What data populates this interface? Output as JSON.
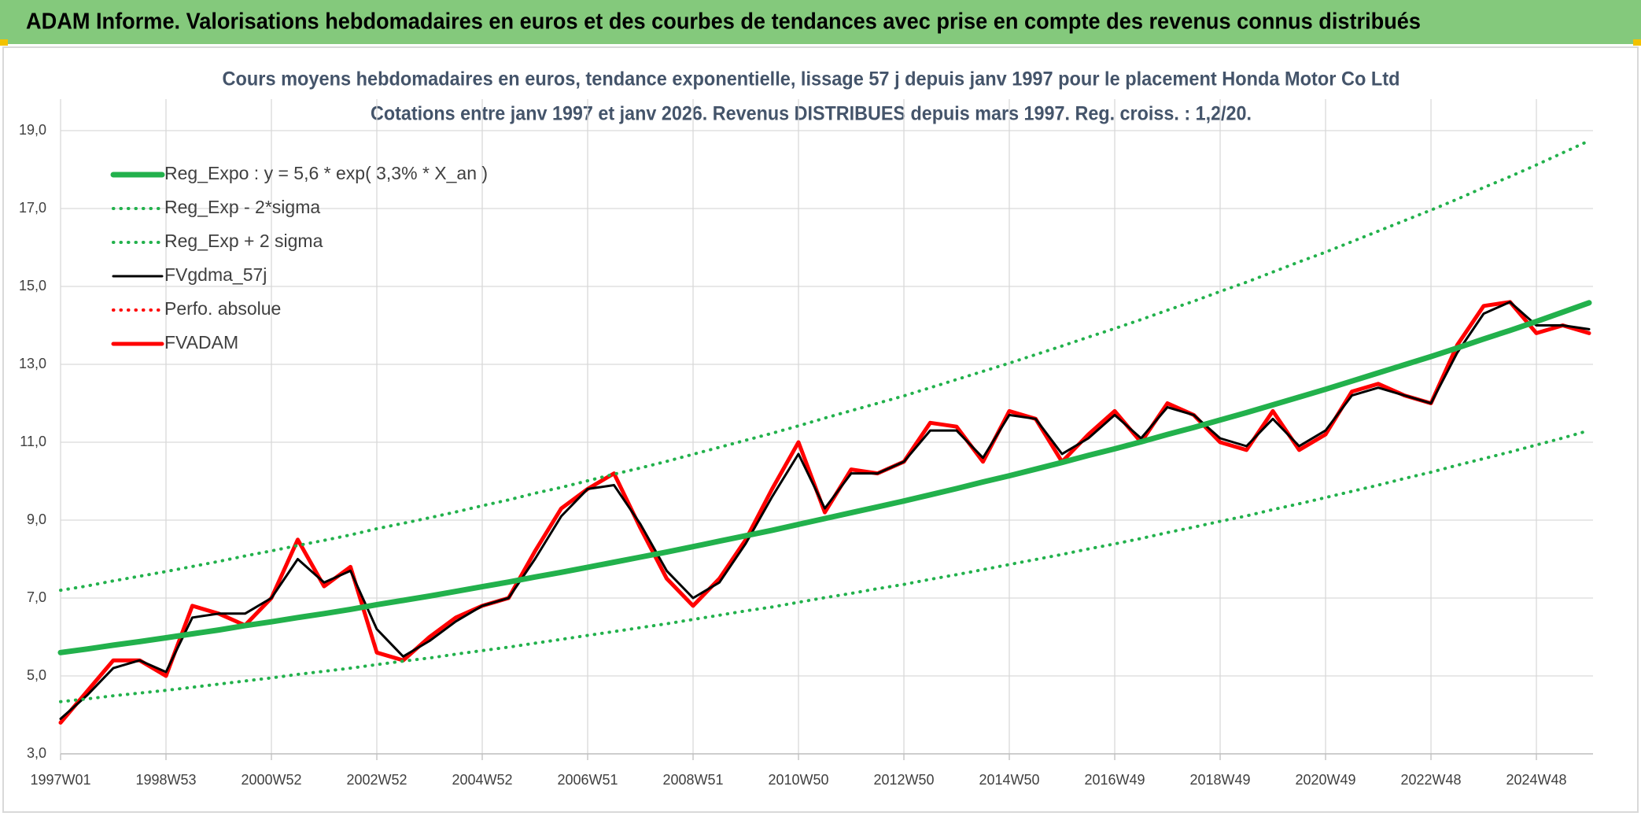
{
  "header": {
    "title": "ADAM Informe. Valorisations hebdomadaires en euros et des courbes de tendances avec prise en compte des revenus connus distribués"
  },
  "chart_data": {
    "type": "line",
    "title": "Cours moyens hebdomadaires en euros, tendance exponentielle, lissage 57 j depuis janv 1997 pour le placement Honda Motor Co Ltd",
    "subtitle": "Cotations entre janv 1997 et janv 2026. Revenus DISTRIBUES depuis mars 1997. Reg. croiss. : 1,2/20.",
    "categories": [
      "1997W01",
      null,
      null,
      null,
      "1998W53",
      null,
      null,
      null,
      "2000W52",
      null,
      null,
      null,
      "2002W52",
      null,
      null,
      null,
      "2004W52",
      null,
      null,
      null,
      "2006W51",
      null,
      null,
      null,
      "2008W51",
      null,
      null,
      null,
      "2010W50",
      null,
      null,
      null,
      "2012W50",
      null,
      null,
      null,
      "2014W50",
      null,
      null,
      null,
      "2016W49",
      null,
      null,
      null,
      "2018W49",
      null,
      null,
      null,
      "2020W49",
      null,
      null,
      null,
      "2022W48",
      null,
      null,
      null,
      "2024W48",
      null,
      null
    ],
    "ylim": [
      3,
      19
    ],
    "yticks": [
      {
        "value": 3,
        "label": "3,0"
      },
      {
        "value": 5,
        "label": "5,0"
      },
      {
        "value": 7,
        "label": "7,0"
      },
      {
        "value": 9,
        "label": "9,0"
      },
      {
        "value": 11,
        "label": "11,0"
      },
      {
        "value": 13,
        "label": "13,0"
      },
      {
        "value": 15,
        "label": "15,0"
      },
      {
        "value": 17,
        "label": "17,0"
      },
      {
        "value": 19,
        "label": "19,0"
      }
    ],
    "grid": true,
    "legend": "top-left",
    "series": [
      {
        "name": "Reg_Expo : y = 5,6 * exp( 3,3% *  X_an )",
        "color": "#22b14c",
        "style": "solid",
        "values": [
          5.6,
          5.69,
          5.79,
          5.88,
          5.98,
          6.08,
          6.18,
          6.29,
          6.39,
          6.5,
          6.6,
          6.71,
          6.83,
          6.94,
          7.05,
          7.17,
          7.29,
          7.41,
          7.54,
          7.66,
          7.79,
          7.92,
          8.05,
          8.18,
          8.32,
          8.46,
          8.6,
          8.74,
          8.89,
          9.04,
          9.19,
          9.34,
          9.49,
          9.65,
          9.81,
          9.98,
          10.14,
          10.31,
          10.48,
          10.66,
          10.83,
          11.01,
          11.2,
          11.38,
          11.57,
          11.76,
          11.96,
          12.16,
          12.36,
          12.57,
          12.78,
          12.99,
          13.2,
          13.42,
          13.65,
          13.87,
          14.1,
          14.34,
          14.58
        ]
      },
      {
        "name": "Reg_Exp - 2*sigma",
        "color": "#22b14c",
        "style": "dotted",
        "values": [
          4.34,
          4.41,
          4.49,
          4.56,
          4.63,
          4.71,
          4.79,
          4.87,
          4.95,
          5.04,
          5.12,
          5.2,
          5.29,
          5.38,
          5.46,
          5.56,
          5.65,
          5.74,
          5.84,
          5.94,
          6.04,
          6.14,
          6.24,
          6.34,
          6.45,
          6.56,
          6.67,
          6.77,
          6.89,
          7.01,
          7.12,
          7.24,
          7.35,
          7.48,
          7.6,
          7.73,
          7.86,
          7.99,
          8.12,
          8.26,
          8.39,
          8.53,
          8.68,
          8.82,
          8.97,
          9.11,
          9.27,
          9.42,
          9.58,
          9.74,
          9.9,
          10.07,
          10.23,
          10.41,
          10.58,
          10.75,
          10.93,
          11.11,
          11.3
        ]
      },
      {
        "name": "Reg_Exp + 2 sigma",
        "color": "#22b14c",
        "style": "dotted",
        "values": [
          7.2,
          7.31,
          7.44,
          7.56,
          7.68,
          7.81,
          7.94,
          8.08,
          8.21,
          8.35,
          8.48,
          8.62,
          8.78,
          8.92,
          9.06,
          9.21,
          9.37,
          9.52,
          9.69,
          9.84,
          10.01,
          10.18,
          10.34,
          10.51,
          10.69,
          10.87,
          11.05,
          11.23,
          11.42,
          11.62,
          11.81,
          12.0,
          12.19,
          12.4,
          12.61,
          12.82,
          13.03,
          13.25,
          13.47,
          13.7,
          13.92,
          14.15,
          14.39,
          14.62,
          14.87,
          15.11,
          15.37,
          15.63,
          15.88,
          16.15,
          16.42,
          16.69,
          16.96,
          17.24,
          17.54,
          17.82,
          18.12,
          18.43,
          18.74
        ]
      },
      {
        "name": "FVgdma_57j",
        "color": "#000000",
        "style": "solid-thin",
        "values": [
          3.9,
          4.5,
          5.2,
          5.4,
          5.1,
          6.5,
          6.6,
          6.6,
          7.0,
          8.0,
          7.4,
          7.7,
          6.2,
          5.5,
          5.9,
          6.4,
          6.8,
          7.0,
          8.0,
          9.1,
          9.8,
          9.9,
          8.9,
          7.7,
          7.0,
          7.4,
          8.4,
          9.6,
          10.7,
          9.3,
          10.2,
          10.2,
          10.5,
          11.3,
          11.3,
          10.6,
          11.7,
          11.6,
          10.7,
          11.1,
          11.7,
          11.1,
          11.9,
          11.7,
          11.1,
          10.9,
          11.6,
          10.9,
          11.3,
          12.2,
          12.4,
          12.2,
          12.0,
          13.3,
          14.3,
          14.6,
          14.0,
          14.0,
          13.9
        ]
      },
      {
        "name": "Perfo. absolue",
        "color": "#ff0000",
        "style": "dotted",
        "values": [
          3.8,
          4.6,
          5.4,
          5.4,
          5.0,
          6.8,
          6.6,
          6.3,
          7.0,
          8.5,
          7.3,
          7.8,
          5.6,
          5.4,
          6.0,
          6.5,
          6.8,
          7.0,
          8.2,
          9.3,
          9.8,
          10.2,
          8.8,
          7.5,
          6.8,
          7.5,
          8.5,
          9.8,
          11.0,
          9.2,
          10.3,
          10.2,
          10.5,
          11.5,
          11.4,
          10.5,
          11.8,
          11.6,
          10.5,
          11.2,
          11.8,
          11.0,
          12.0,
          11.7,
          11.0,
          10.8,
          11.8,
          10.8,
          11.2,
          12.3,
          12.5,
          12.2,
          12.0,
          13.5,
          14.5,
          14.6,
          13.8,
          14.0,
          13.8
        ]
      },
      {
        "name": "FVADAM",
        "color": "#ff0000",
        "style": "solid-red",
        "values": [
          3.8,
          4.6,
          5.4,
          5.4,
          5.0,
          6.8,
          6.6,
          6.3,
          7.0,
          8.5,
          7.3,
          7.8,
          5.6,
          5.4,
          6.0,
          6.5,
          6.8,
          7.0,
          8.2,
          9.3,
          9.8,
          10.2,
          8.8,
          7.5,
          6.8,
          7.5,
          8.5,
          9.8,
          11.0,
          9.2,
          10.3,
          10.2,
          10.5,
          11.5,
          11.4,
          10.5,
          11.8,
          11.6,
          10.5,
          11.2,
          11.8,
          11.0,
          12.0,
          11.7,
          11.0,
          10.8,
          11.8,
          10.8,
          11.2,
          12.3,
          12.5,
          12.2,
          12.0,
          13.5,
          14.5,
          14.6,
          13.8,
          14.0,
          13.8
        ]
      }
    ]
  }
}
